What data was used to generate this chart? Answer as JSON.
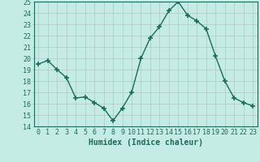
{
  "xlabel": "Humidex (Indice chaleur)",
  "x": [
    0,
    1,
    2,
    3,
    4,
    5,
    6,
    7,
    8,
    9,
    10,
    11,
    12,
    13,
    14,
    15,
    16,
    17,
    18,
    19,
    20,
    21,
    22,
    23
  ],
  "y": [
    19.5,
    19.8,
    19.0,
    18.3,
    16.5,
    16.6,
    16.1,
    15.6,
    14.5,
    15.6,
    17.0,
    20.0,
    21.8,
    22.8,
    24.2,
    25.0,
    23.8,
    23.3,
    22.6,
    20.2,
    18.0,
    16.5,
    16.1,
    15.8
  ],
  "ylim": [
    14,
    25
  ],
  "xlim": [
    -0.5,
    23.5
  ],
  "yticks": [
    14,
    15,
    16,
    17,
    18,
    19,
    20,
    21,
    22,
    23,
    24,
    25
  ],
  "xticks": [
    0,
    1,
    2,
    3,
    4,
    5,
    6,
    7,
    8,
    9,
    10,
    11,
    12,
    13,
    14,
    15,
    16,
    17,
    18,
    19,
    20,
    21,
    22,
    23
  ],
  "xtick_labels": [
    "0",
    "1",
    "2",
    "3",
    "4",
    "5",
    "6",
    "7",
    "8",
    "9",
    "10",
    "11",
    "12",
    "13",
    "14",
    "15",
    "16",
    "17",
    "18",
    "19",
    "20",
    "21",
    "22",
    "23"
  ],
  "line_color": "#1a6b5a",
  "marker": "+",
  "marker_size": 4,
  "marker_lw": 1.2,
  "line_width": 1.0,
  "bg_color": "#c5ece4",
  "grid_color": "#b0c8c4",
  "tick_color": "#1a6b5a",
  "label_color": "#1a6b5a",
  "axis_label_fontsize": 7,
  "tick_fontsize": 6
}
